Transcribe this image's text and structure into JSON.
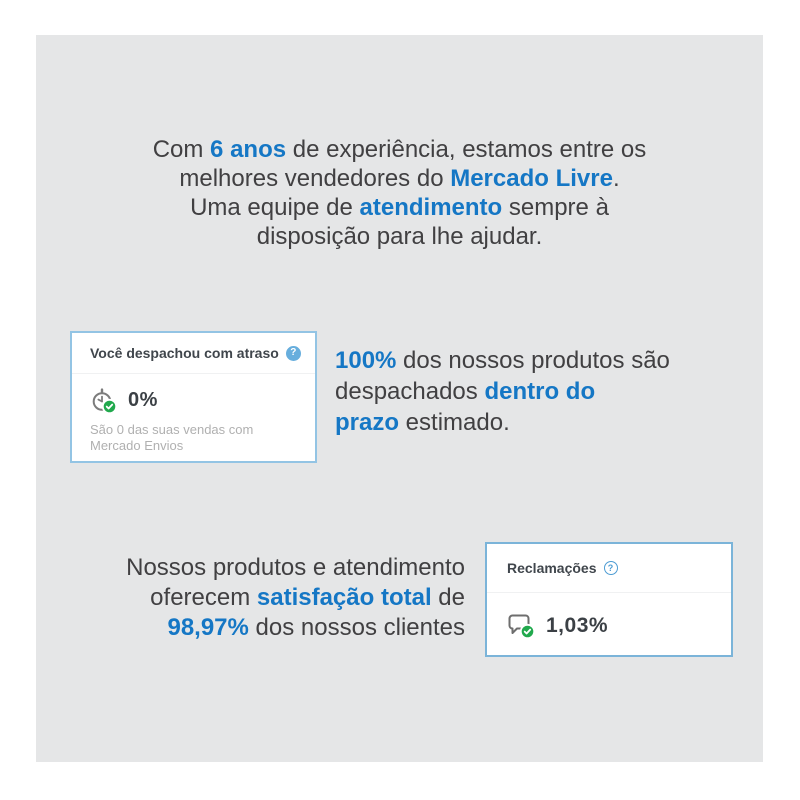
{
  "colors": {
    "accent_blue": "#1577c5",
    "panel_gray": "#e5e6e7",
    "badge_green": "#21a94d",
    "card_border_light": "#93c4e4",
    "card_border_dark": "#7bb4d9",
    "body_text": "#414042",
    "muted_text": "#b0b0b0"
  },
  "icons": {
    "help_glyph": "?"
  },
  "intro": {
    "segments": [
      {
        "t": "Com "
      },
      {
        "t": "6 anos",
        "hl": true
      },
      {
        "t": " de experiência, estamos entre os"
      },
      {
        "br": true
      },
      {
        "t": "melhores vendedores do "
      },
      {
        "t": "Mercado Livre",
        "hl": true
      },
      {
        "t": "."
      },
      {
        "br": true
      },
      {
        "t": "Uma equipe de "
      },
      {
        "t": "atendimento",
        "hl": true
      },
      {
        "t": " sempre à"
      },
      {
        "br": true
      },
      {
        "t": "disposição para lhe ajudar."
      }
    ]
  },
  "shipping_card": {
    "title": "Você despachou com atraso",
    "value": "0%",
    "caption": "São 0 das suas vendas com Mercado Envios"
  },
  "shipping_text": {
    "segments": [
      {
        "t": "100%",
        "hl": true
      },
      {
        "t": " dos nossos produtos são"
      },
      {
        "br": true
      },
      {
        "t": "despachados "
      },
      {
        "t": "dentro do",
        "hl": true
      },
      {
        "br": true
      },
      {
        "t": "prazo",
        "hl": true
      },
      {
        "t": " estimado."
      }
    ]
  },
  "satisfaction_text": {
    "segments": [
      {
        "t": "Nossos produtos e atendimento"
      },
      {
        "br": true
      },
      {
        "t": "oferecem "
      },
      {
        "t": "satisfação total",
        "hl": true
      },
      {
        "t": " de"
      },
      {
        "br": true
      },
      {
        "t": "98,97%",
        "hl": true
      },
      {
        "t": " dos nossos clientes"
      }
    ]
  },
  "complaints_card": {
    "title": "Reclamações",
    "value": "1,03%"
  }
}
